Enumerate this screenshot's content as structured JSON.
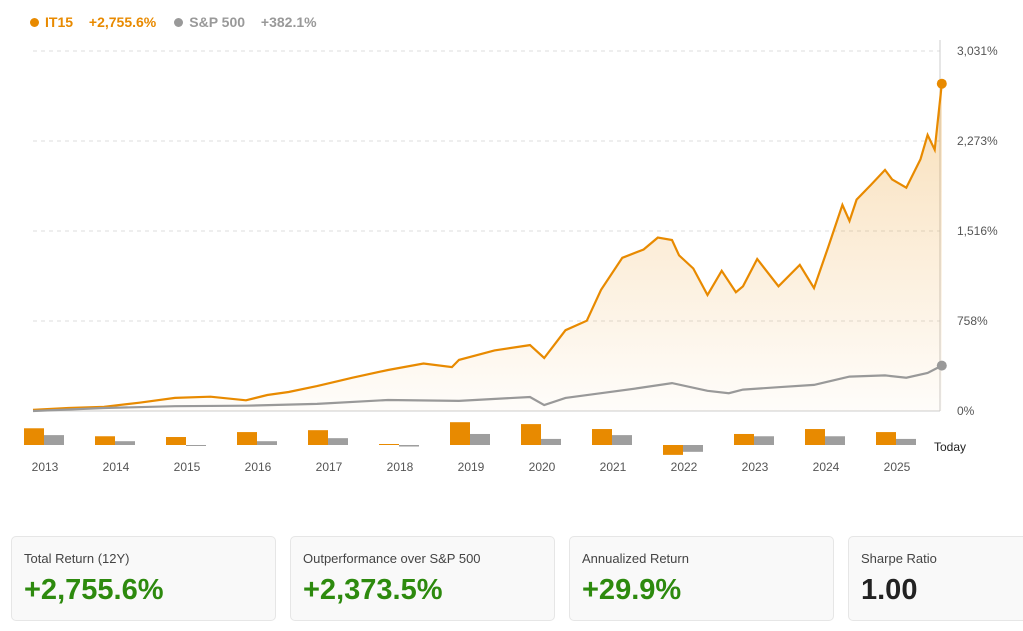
{
  "legend": [
    {
      "name": "IT15",
      "value": "+2,755.6%",
      "color": "#e88a00"
    },
    {
      "name": "S&P 500",
      "value": "+382.1%",
      "color": "#999999"
    }
  ],
  "chart_data": {
    "type": "line",
    "ylim": [
      0,
      3031
    ],
    "yticks": [
      "3,031%",
      "2,273%",
      "1,516%",
      "758%",
      "0%"
    ],
    "ytick_values": [
      3031,
      2273,
      1516,
      758,
      0
    ],
    "grid": true,
    "x_labels": [
      "2013",
      "2014",
      "2015",
      "2016",
      "2017",
      "2018",
      "2019",
      "2020",
      "2021",
      "2022",
      "2023",
      "2024",
      "2025"
    ],
    "today_label": "Today",
    "series": [
      {
        "name": "IT15",
        "color": "#e88a00",
        "x": [
          2013,
          2013.5,
          2014,
          2014.5,
          2015,
          2015.5,
          2016,
          2016.3,
          2016.6,
          2017,
          2017.5,
          2018,
          2018.5,
          2018.9,
          2019,
          2019.5,
          2020,
          2020.2,
          2020.5,
          2020.8,
          2021,
          2021.3,
          2021.6,
          2021.8,
          2022,
          2022.1,
          2022.3,
          2022.5,
          2022.7,
          2022.9,
          2023,
          2023.2,
          2023.5,
          2023.8,
          2024,
          2024.2,
          2024.4,
          2024.5,
          2024.6,
          2024.8,
          2025,
          2025.1,
          2025.3,
          2025.5,
          2025.6,
          2025.7,
          2025.8
        ],
        "y": [
          10,
          25,
          35,
          70,
          110,
          120,
          90,
          135,
          160,
          210,
          280,
          345,
          400,
          370,
          430,
          510,
          555,
          446,
          680,
          760,
          1020,
          1290,
          1360,
          1460,
          1440,
          1310,
          1200,
          977,
          1180,
          1000,
          1050,
          1280,
          1050,
          1230,
          1035,
          1380,
          1735,
          1600,
          1780,
          1903,
          2030,
          1950,
          1880,
          2120,
          2325,
          2200,
          2755.6
        ]
      },
      {
        "name": "S&P 500",
        "color": "#999999",
        "x": [
          2013,
          2014,
          2015,
          2016,
          2017,
          2018,
          2019,
          2020,
          2020.2,
          2020.5,
          2021,
          2021.5,
          2022,
          2022.5,
          2022.8,
          2023,
          2023.5,
          2024,
          2024.5,
          2025,
          2025.3,
          2025.6,
          2025.8
        ],
        "y": [
          0,
          25,
          40,
          45,
          60,
          93,
          85,
          118,
          50,
          110,
          150,
          190,
          235,
          170,
          150,
          180,
          200,
          220,
          290,
          300,
          280,
          320,
          382.1
        ]
      }
    ],
    "annual_returns": {
      "years": [
        "2013",
        "2014",
        "2015",
        "2016",
        "2017",
        "2018",
        "2019",
        "2020",
        "2021",
        "2022",
        "2023",
        "2024",
        "2025"
      ],
      "IT15": [
        44,
        23,
        21,
        34,
        39,
        1,
        60,
        55,
        42,
        -26,
        29,
        42,
        34
      ],
      "S&P 500": [
        26,
        10,
        -2,
        10,
        18,
        -4,
        29,
        16,
        26,
        -18,
        23,
        23,
        16
      ]
    }
  },
  "cards": [
    {
      "label": "Total Return (12Y)",
      "value": "+2,755.6%",
      "color": "#2d8a0e"
    },
    {
      "label": "Outperformance over S&P 500",
      "value": "+2,373.5%",
      "color": "#2d8a0e"
    },
    {
      "label": "Annualized Return",
      "value": "+29.9%",
      "color": "#2d8a0e"
    },
    {
      "label": "Sharpe Ratio",
      "value": "1.00",
      "color": "#222222"
    }
  ]
}
